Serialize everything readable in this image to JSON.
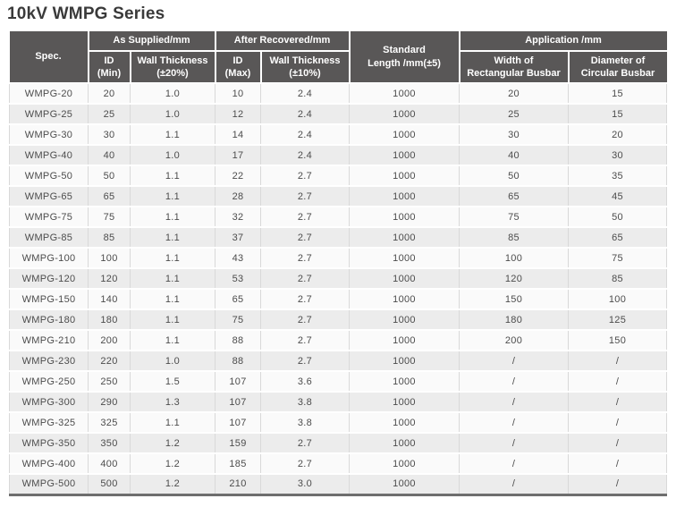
{
  "page": {
    "title": "10kV WMPG Series"
  },
  "colors": {
    "header_bg": "#595757",
    "title_color": "#3a3a3a",
    "data_color": "#4c4c4c",
    "row_odd": "#fafafa",
    "row_even": "#ececec",
    "cell_border": "#d9d9d9",
    "bottom_bar": "#6e6e6e"
  },
  "table": {
    "header": {
      "spec": "Spec.",
      "as_supplied": "As Supplied/mm",
      "after_recovered": "After Recovered/mm",
      "standard_length": "Standard\nLength /mm(±5)",
      "application": "Application /mm",
      "id_min": "ID\n(Min)",
      "wall_thickness_20": "Wall Thickness\n(±20%)",
      "id_max": "ID\n(Max)",
      "wall_thickness_10": "Wall Thickness\n(±10%)",
      "width_rect": "Width of\nRectangular Busbar",
      "dia_circ": "Diameter of\nCircular Busbar"
    },
    "rows": [
      [
        "WMPG-20",
        "20",
        "1.0",
        "10",
        "2.4",
        "1000",
        "20",
        "15"
      ],
      [
        "WMPG-25",
        "25",
        "1.0",
        "12",
        "2.4",
        "1000",
        "25",
        "15"
      ],
      [
        "WMPG-30",
        "30",
        "1.1",
        "14",
        "2.4",
        "1000",
        "30",
        "20"
      ],
      [
        "WMPG-40",
        "40",
        "1.0",
        "17",
        "2.4",
        "1000",
        "40",
        "30"
      ],
      [
        "WMPG-50",
        "50",
        "1.1",
        "22",
        "2.7",
        "1000",
        "50",
        "35"
      ],
      [
        "WMPG-65",
        "65",
        "1.1",
        "28",
        "2.7",
        "1000",
        "65",
        "45"
      ],
      [
        "WMPG-75",
        "75",
        "1.1",
        "32",
        "2.7",
        "1000",
        "75",
        "50"
      ],
      [
        "WMPG-85",
        "85",
        "1.1",
        "37",
        "2.7",
        "1000",
        "85",
        "65"
      ],
      [
        "WMPG-100",
        "100",
        "1.1",
        "43",
        "2.7",
        "1000",
        "100",
        "75"
      ],
      [
        "WMPG-120",
        "120",
        "1.1",
        "53",
        "2.7",
        "1000",
        "120",
        "85"
      ],
      [
        "WMPG-150",
        "140",
        "1.1",
        "65",
        "2.7",
        "1000",
        "150",
        "100"
      ],
      [
        "WMPG-180",
        "180",
        "1.1",
        "75",
        "2.7",
        "1000",
        "180",
        "125"
      ],
      [
        "WMPG-210",
        "200",
        "1.1",
        "88",
        "2.7",
        "1000",
        "200",
        "150"
      ],
      [
        "WMPG-230",
        "220",
        "1.0",
        "88",
        "2.7",
        "1000",
        "/",
        "/"
      ],
      [
        "WMPG-250",
        "250",
        "1.5",
        "107",
        "3.6",
        "1000",
        "/",
        "/"
      ],
      [
        "WMPG-300",
        "290",
        "1.3",
        "107",
        "3.8",
        "1000",
        "/",
        "/"
      ],
      [
        "WMPG-325",
        "325",
        "1.1",
        "107",
        "3.8",
        "1000",
        "/",
        "/"
      ],
      [
        "WMPG-350",
        "350",
        "1.2",
        "159",
        "2.7",
        "1000",
        "/",
        "/"
      ],
      [
        "WMPG-400",
        "400",
        "1.2",
        "185",
        "2.7",
        "1000",
        "/",
        "/"
      ],
      [
        "WMPG-500",
        "500",
        "1.2",
        "210",
        "3.0",
        "1000",
        "/",
        "/"
      ]
    ]
  }
}
